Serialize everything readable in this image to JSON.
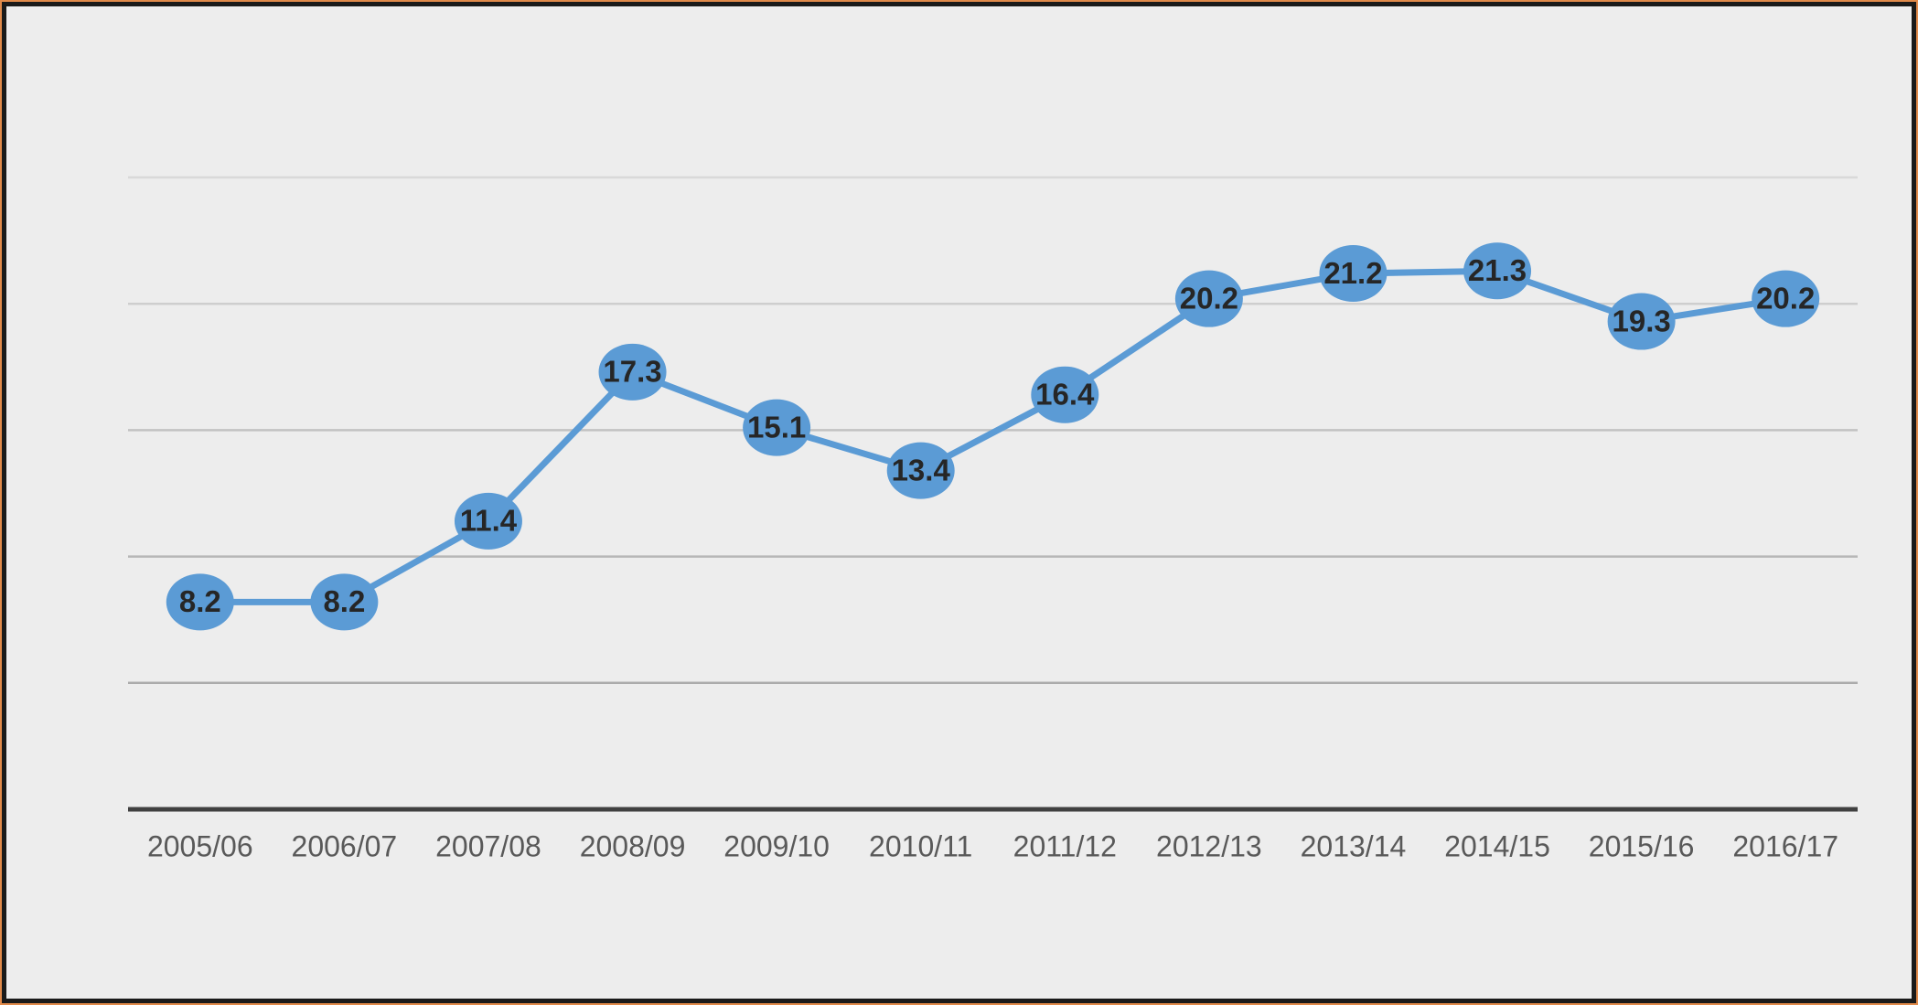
{
  "chart_data": {
    "type": "line",
    "categories": [
      "2005/06",
      "2006/07",
      "2007/08",
      "2008/09",
      "2009/10",
      "2010/11",
      "2011/12",
      "2012/13",
      "2013/14",
      "2014/15",
      "2015/16",
      "2016/17"
    ],
    "series": [
      {
        "color": "#5b9bd5",
        "values": [
          8.2,
          8.2,
          11.4,
          17.3,
          15.1,
          13.4,
          16.4,
          20.2,
          21.2,
          21.3,
          19.3,
          20.2
        ]
      }
    ],
    "ylim": [
      0,
      25
    ],
    "yticks": [
      0,
      5,
      10,
      15,
      20,
      25
    ],
    "grid": true
  }
}
